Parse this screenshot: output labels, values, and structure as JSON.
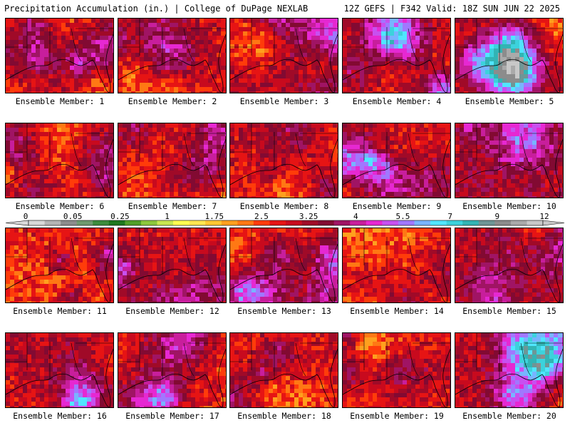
{
  "header": {
    "left": "Precipitation Accumulation (in.) | College of DuPage NEXLAB",
    "right": "12Z GEFS | F342 Valid: 18Z SUN JUN 22 2025"
  },
  "colorbar": {
    "tick_labels": [
      "0",
      "0.05",
      "0.25",
      "1",
      "1.75",
      "2.5",
      "3.25",
      "4",
      "5.5",
      "7",
      "9",
      "12"
    ],
    "colors": [
      "#d8d8d8",
      "#b4b4b4",
      "#8c8c8c",
      "#6e9a6e",
      "#3c8c3c",
      "#1e781e",
      "#50a028",
      "#8cc83c",
      "#c8e650",
      "#ffff50",
      "#ffe650",
      "#ffc832",
      "#ffa01e",
      "#ff7814",
      "#ff3c0a",
      "#e61414",
      "#c80a1e",
      "#a00a28",
      "#820a32",
      "#a01464",
      "#c81e9c",
      "#e628d2",
      "#c850f0",
      "#a078ff",
      "#78b4ff",
      "#50e6ff",
      "#3cd2dc",
      "#32b4b4",
      "#6e9696",
      "#8c8c8c",
      "#aaaaaa",
      "#c8c8c8"
    ]
  },
  "members": [
    {
      "label": "Ensemble Member: 1",
      "wet": 0.55
    },
    {
      "label": "Ensemble Member: 2",
      "wet": 0.55
    },
    {
      "label": "Ensemble Member: 3",
      "wet": 0.7
    },
    {
      "label": "Ensemble Member: 4",
      "wet": 0.6
    },
    {
      "label": "Ensemble Member: 5",
      "wet": 0.6
    },
    {
      "label": "Ensemble Member: 6",
      "wet": 0.6
    },
    {
      "label": "Ensemble Member: 7",
      "wet": 0.45
    },
    {
      "label": "Ensemble Member: 8",
      "wet": 0.55
    },
    {
      "label": "Ensemble Member: 9",
      "wet": 0.55
    },
    {
      "label": "Ensemble Member: 10",
      "wet": 0.65
    },
    {
      "label": "Ensemble Member: 11",
      "wet": 0.4
    },
    {
      "label": "Ensemble Member: 12",
      "wet": 0.5
    },
    {
      "label": "Ensemble Member: 13",
      "wet": 0.45
    },
    {
      "label": "Ensemble Member: 14",
      "wet": 0.4
    },
    {
      "label": "Ensemble Member: 15",
      "wet": 0.7
    },
    {
      "label": "Ensemble Member: 16",
      "wet": 0.5
    },
    {
      "label": "Ensemble Member: 17",
      "wet": 0.45
    },
    {
      "label": "Ensemble Member: 18",
      "wet": 0.5
    },
    {
      "label": "Ensemble Member: 19",
      "wet": 0.4
    },
    {
      "label": "Ensemble Member: 20",
      "wet": 0.6
    }
  ]
}
